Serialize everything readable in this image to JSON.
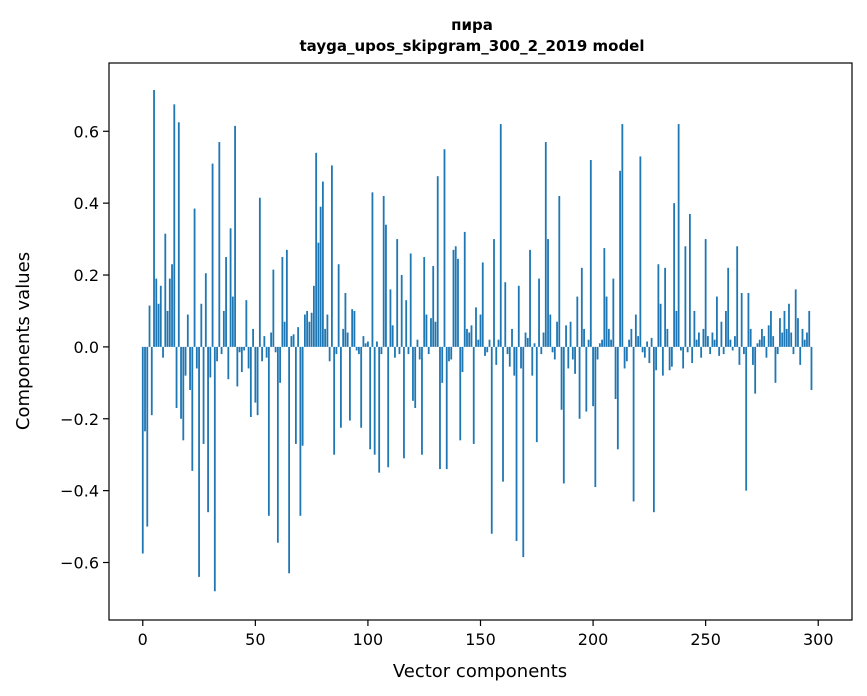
{
  "chart_data": {
    "type": "bar",
    "title": "пира",
    "subtitle": "tayga_upos_skipgram_300_2_2019 model",
    "xlabel": "Vector components",
    "ylabel": "Components values",
    "xlim": [
      -15,
      315
    ],
    "ylim": [
      -0.76,
      0.79
    ],
    "xticks": [
      0,
      50,
      100,
      150,
      200,
      250,
      300
    ],
    "xtick_labels": [
      "0",
      "50",
      "100",
      "150",
      "200",
      "250",
      "300"
    ],
    "yticks": [
      -0.6,
      -0.4,
      -0.2,
      0.0,
      0.2,
      0.4,
      0.6
    ],
    "ytick_labels": [
      "−0.6",
      "−0.4",
      "−0.2",
      "0.0",
      "0.2",
      "0.4",
      "0.6"
    ],
    "bar_color": "#1f77b4",
    "bar_width": 0.8,
    "x": "0..299",
    "values": [
      -0.575,
      -0.235,
      -0.5,
      0.115,
      -0.19,
      0.715,
      0.19,
      0.12,
      0.17,
      -0.03,
      0.315,
      0.1,
      0.19,
      0.23,
      0.675,
      -0.17,
      0.625,
      -0.2,
      -0.26,
      -0.08,
      0.09,
      -0.12,
      -0.345,
      0.385,
      -0.06,
      -0.64,
      0.12,
      -0.27,
      0.205,
      -0.46,
      -0.085,
      0.51,
      -0.68,
      -0.04,
      0.57,
      -0.02,
      0.1,
      0.25,
      -0.09,
      0.33,
      0.14,
      0.615,
      -0.11,
      -0.015,
      -0.07,
      -0.01,
      0.13,
      -0.06,
      -0.195,
      0.05,
      -0.155,
      -0.19,
      0.415,
      -0.04,
      0.03,
      -0.03,
      -0.47,
      0.04,
      0.215,
      -0.015,
      -0.545,
      -0.1,
      0.25,
      0.07,
      0.27,
      -0.63,
      0.03,
      0.035,
      -0.27,
      0.055,
      -0.47,
      -0.275,
      0.09,
      0.1,
      0.07,
      0.095,
      0.17,
      0.54,
      0.29,
      0.39,
      0.46,
      0.05,
      0.09,
      -0.04,
      0.505,
      -0.3,
      -0.02,
      0.23,
      -0.225,
      0.05,
      0.15,
      0.04,
      -0.205,
      0.105,
      0.1,
      -0.01,
      -0.02,
      -0.225,
      0.03,
      0.01,
      0.015,
      -0.285,
      0.43,
      -0.3,
      0.015,
      -0.35,
      -0.02,
      0.42,
      0.34,
      -0.335,
      0.16,
      0.06,
      -0.03,
      0.3,
      -0.02,
      0.2,
      -0.31,
      0.13,
      -0.02,
      0.26,
      -0.15,
      -0.17,
      0.02,
      -0.035,
      -0.3,
      0.25,
      0.09,
      -0.02,
      0.08,
      0.225,
      0.07,
      0.475,
      -0.34,
      -0.1,
      0.55,
      -0.34,
      -0.04,
      -0.035,
      0.27,
      0.28,
      0.245,
      -0.26,
      -0.07,
      0.32,
      0.05,
      0.04,
      0.06,
      -0.27,
      0.11,
      0.02,
      0.09,
      0.235,
      -0.025,
      -0.015,
      0.02,
      -0.52,
      0.3,
      -0.05,
      0.02,
      0.62,
      -0.375,
      0.18,
      -0.02,
      -0.055,
      0.05,
      -0.08,
      -0.54,
      0.17,
      -0.06,
      -0.585,
      0.04,
      0.025,
      0.27,
      -0.08,
      0.01,
      -0.265,
      0.19,
      -0.02,
      0.04,
      0.57,
      0.3,
      0.09,
      -0.015,
      -0.035,
      0.07,
      0.42,
      -0.175,
      -0.38,
      0.06,
      -0.06,
      0.07,
      -0.035,
      -0.075,
      0.14,
      -0.2,
      0.22,
      0.05,
      -0.18,
      0.02,
      0.52,
      -0.165,
      -0.39,
      -0.035,
      0.01,
      0.02,
      0.275,
      0.14,
      0.05,
      0.02,
      0.19,
      -0.145,
      -0.285,
      0.49,
      0.62,
      -0.06,
      -0.04,
      0.02,
      0.05,
      -0.43,
      0.09,
      0.03,
      0.53,
      -0.015,
      -0.03,
      0.015,
      -0.045,
      0.025,
      -0.46,
      -0.065,
      0.23,
      0.12,
      -0.08,
      0.22,
      0.05,
      -0.065,
      -0.055,
      0.4,
      0.1,
      0.62,
      -0.01,
      -0.06,
      0.28,
      -0.015,
      0.37,
      -0.045,
      0.1,
      0.02,
      0.04,
      -0.03,
      0.05,
      0.3,
      0.03,
      -0.02,
      0.04,
      0.02,
      0.14,
      -0.025,
      0.07,
      -0.02,
      0.1,
      0.22,
      0.02,
      -0.01,
      0.03,
      0.28,
      -0.05,
      0.15,
      -0.02,
      -0.4,
      0.15,
      0.05,
      -0.05,
      -0.13,
      0.01,
      0.02,
      0.05,
      0.03,
      -0.03,
      0.06,
      0.1,
      0.03,
      -0.1,
      -0.02,
      0.08,
      0.04,
      0.1,
      0.05,
      0.12,
      0.04,
      -0.02,
      0.16,
      0.08,
      -0.05,
      0.05,
      0.02,
      0.04,
      0.1,
      -0.12
    ]
  }
}
